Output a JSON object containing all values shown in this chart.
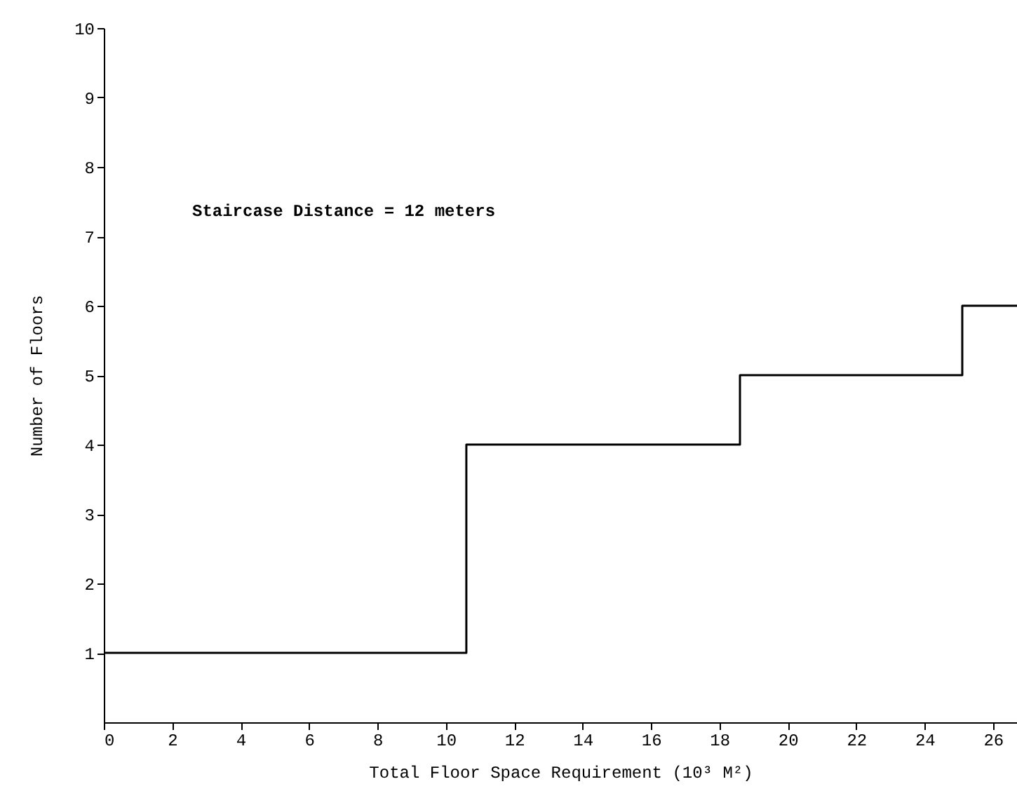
{
  "chart_data": {
    "type": "step",
    "xlabel": "Total Floor Space Requirement (10³ M²)",
    "ylabel": "Number of Floors",
    "annotations": [
      "Staircase Distance = 12 meters"
    ],
    "x": [
      0,
      10.6,
      18.6,
      25.1,
      26.7
    ],
    "series": [
      {
        "color": "#000000",
        "values": [
          1,
          4,
          5,
          6,
          6
        ]
      }
    ],
    "xlim": [
      0,
      26.7
    ],
    "xticks": [
      0,
      2,
      4,
      6,
      8,
      10,
      12,
      14,
      16,
      18,
      20,
      22,
      24,
      26
    ],
    "ylim": [
      0,
      10
    ],
    "yticks": [
      1,
      2,
      3,
      4,
      5,
      6,
      7,
      8,
      9,
      10
    ],
    "grid": false,
    "marker": "none",
    "line_style": "solid"
  }
}
